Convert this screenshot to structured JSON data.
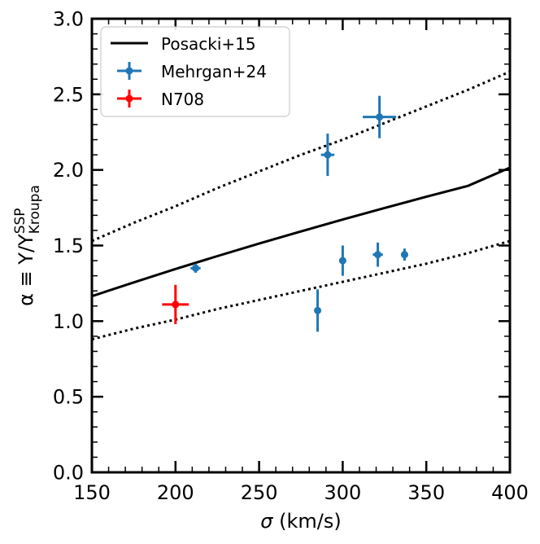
{
  "chart_data": {
    "type": "scatter",
    "title": "",
    "xlabel_symbol": "σ",
    "xlabel_unit": " (km/s)",
    "ylabel_main": "α ≡ Υ/Υ",
    "ylabel_sup": "SSP",
    "ylabel_sub": "Kroupa",
    "xlim": [
      150,
      400
    ],
    "ylim": [
      0.0,
      3.0
    ],
    "x_major_ticks": [
      150,
      200,
      250,
      300,
      350,
      400
    ],
    "x_tick_labels": [
      "150",
      "200",
      "250",
      "300",
      "350",
      "400"
    ],
    "y_major_ticks": [
      0.0,
      0.5,
      1.0,
      1.5,
      2.0,
      2.5,
      3.0
    ],
    "y_tick_labels": [
      "0.0",
      "0.5",
      "1.0",
      "1.5",
      "2.0",
      "2.5",
      "3.0"
    ],
    "x_minor_step": 10,
    "y_minor_step": 0.1,
    "legend_position": "upper-left",
    "colors": {
      "posacki": "#000000",
      "mehrgan": "#1f77b4",
      "n708": "#ff0000"
    },
    "lines": [
      {
        "name": "Posacki+15",
        "style": "solid",
        "x": [
          150,
          175,
          200,
          225,
          250,
          275,
          300,
          325,
          350,
          375,
          400
        ],
        "y": [
          1.165,
          1.256,
          1.345,
          1.43,
          1.513,
          1.593,
          1.672,
          1.748,
          1.823,
          1.895,
          2.015
        ]
      },
      {
        "name": "upper-scatter",
        "style": "dotted",
        "x": [
          150,
          175,
          200,
          225,
          250,
          275,
          300,
          325,
          350,
          375,
          400
        ],
        "y": [
          1.53,
          1.65,
          1.76,
          1.88,
          1.99,
          2.1,
          2.2,
          2.31,
          2.42,
          2.53,
          2.65
        ]
      },
      {
        "name": "lower-scatter",
        "style": "dotted",
        "x": [
          150,
          175,
          200,
          225,
          250,
          275,
          300,
          325,
          350,
          375,
          400
        ],
        "y": [
          0.88,
          0.95,
          1.01,
          1.08,
          1.14,
          1.2,
          1.26,
          1.32,
          1.38,
          1.45,
          1.53
        ]
      }
    ],
    "series": [
      {
        "name": "Mehrgan+24",
        "points": [
          {
            "x": 212,
            "y": 1.35,
            "xerr": 3,
            "yerr": 0.03
          },
          {
            "x": 285,
            "y": 1.07,
            "xerr": 0,
            "yerr": 0.14
          },
          {
            "x": 291,
            "y": 2.1,
            "xerr": 4,
            "yerr": 0.14
          },
          {
            "x": 300,
            "y": 1.4,
            "xerr": 0,
            "yerr": 0.1
          },
          {
            "x": 321,
            "y": 1.44,
            "xerr": 3,
            "yerr": 0.08
          },
          {
            "x": 322,
            "y": 2.35,
            "xerr": 10,
            "yerr": 0.14
          },
          {
            "x": 337,
            "y": 1.44,
            "xerr": 2,
            "yerr": 0.04
          }
        ]
      },
      {
        "name": "N708",
        "points": [
          {
            "x": 200,
            "y": 1.11,
            "xerr": 8,
            "yerr": 0.13
          }
        ]
      }
    ],
    "legend": [
      {
        "label": "Posacki+15",
        "kind": "line"
      },
      {
        "label": "Mehrgan+24",
        "kind": "errorbar"
      },
      {
        "label": "N708",
        "kind": "errorbar"
      }
    ]
  }
}
